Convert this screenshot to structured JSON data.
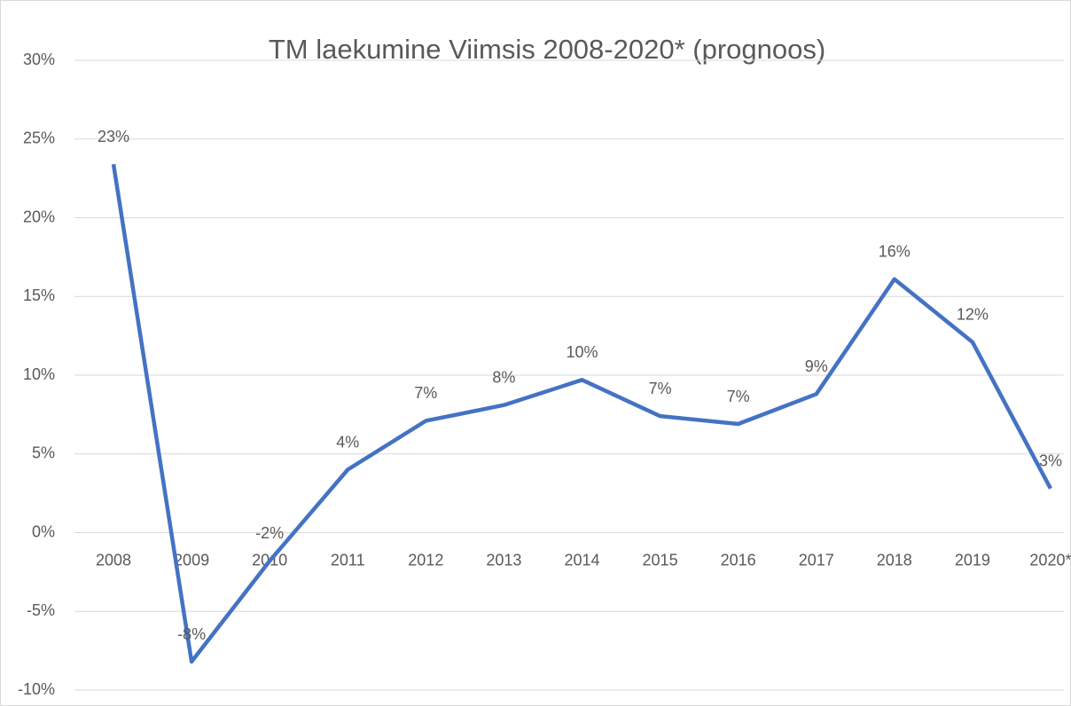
{
  "chart_data": {
    "type": "line",
    "title": "TM laekumine Viimsis 2008-2020* (prognoos)",
    "categories": [
      "2008",
      "2009",
      "2010",
      "2011",
      "2012",
      "2013",
      "2014",
      "2015",
      "2016",
      "2017",
      "2018",
      "2019",
      "2020*"
    ],
    "series": [
      {
        "name": "TM laekumine",
        "color": "#4472c4",
        "values": [
          23.4,
          -8.2,
          -1.8,
          4.0,
          7.1,
          8.1,
          9.7,
          7.4,
          6.9,
          8.8,
          16.1,
          12.1,
          2.8
        ],
        "value_labels": [
          "23%",
          "-8%",
          "-2%",
          "4%",
          "7%",
          "8%",
          "10%",
          "7%",
          "7%",
          "9%",
          "16%",
          "12%",
          "3%"
        ]
      }
    ],
    "ylim": [
      -10,
      30
    ],
    "yticks": [
      {
        "value": -10,
        "label": "-10%"
      },
      {
        "value": -5,
        "label": "-5%"
      },
      {
        "value": 0,
        "label": "0%"
      },
      {
        "value": 5,
        "label": "5%"
      },
      {
        "value": 10,
        "label": "10%"
      },
      {
        "value": 15,
        "label": "15%"
      },
      {
        "value": 20,
        "label": "20%"
      },
      {
        "value": 25,
        "label": "25%"
      },
      {
        "value": 30,
        "label": "30%"
      }
    ],
    "grid": true
  }
}
